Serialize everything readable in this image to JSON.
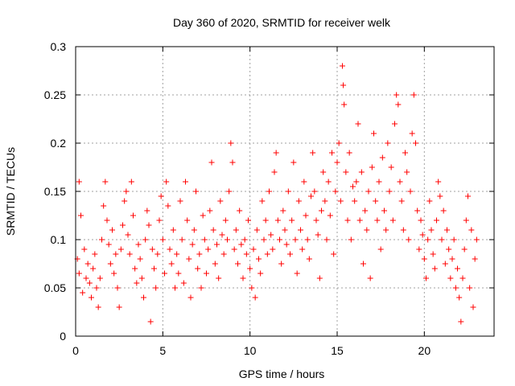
{
  "chart_data": {
    "type": "scatter",
    "title": "Day 360 of 2020, SRMTID for receiver welk",
    "xlabel": "GPS time / hours",
    "ylabel": "SRMTID / TECUs",
    "xlim": [
      0,
      24
    ],
    "ylim": [
      0,
      0.3
    ],
    "x_ticks": [
      0,
      5,
      10,
      15,
      20
    ],
    "x_tick_labels": [
      "0",
      "5",
      "10",
      "15",
      "20"
    ],
    "y_ticks": [
      0,
      0.05,
      0.1,
      0.15,
      0.2,
      0.25,
      0.3
    ],
    "y_tick_labels": [
      "0",
      "0.05",
      "0.1",
      "0.15",
      "0.2",
      "0.25",
      "0.3"
    ],
    "grid": true,
    "marker": "+",
    "color": "#ff0000",
    "series": [
      {
        "name": "SRMTID",
        "points": [
          [
            0.1,
            0.08
          ],
          [
            0.2,
            0.065
          ],
          [
            0.2,
            0.16
          ],
          [
            0.3,
            0.125
          ],
          [
            0.4,
            0.045
          ],
          [
            0.5,
            0.09
          ],
          [
            0.6,
            0.06
          ],
          [
            0.7,
            0.075
          ],
          [
            0.8,
            0.055
          ],
          [
            0.9,
            0.04
          ],
          [
            1.0,
            0.07
          ],
          [
            1.1,
            0.085
          ],
          [
            1.2,
            0.05
          ],
          [
            1.3,
            0.03
          ],
          [
            1.4,
            0.06
          ],
          [
            1.5,
            0.1
          ],
          [
            1.6,
            0.135
          ],
          [
            1.7,
            0.16
          ],
          [
            1.8,
            0.12
          ],
          [
            1.9,
            0.095
          ],
          [
            2.0,
            0.075
          ],
          [
            2.1,
            0.11
          ],
          [
            2.2,
            0.065
          ],
          [
            2.3,
            0.085
          ],
          [
            2.4,
            0.05
          ],
          [
            2.5,
            0.03
          ],
          [
            2.6,
            0.09
          ],
          [
            2.7,
            0.115
          ],
          [
            2.8,
            0.14
          ],
          [
            2.9,
            0.15
          ],
          [
            3.0,
            0.105
          ],
          [
            3.1,
            0.085
          ],
          [
            3.2,
            0.16
          ],
          [
            3.3,
            0.125
          ],
          [
            3.4,
            0.07
          ],
          [
            3.5,
            0.055
          ],
          [
            3.6,
            0.095
          ],
          [
            3.7,
            0.08
          ],
          [
            3.8,
            0.06
          ],
          [
            3.9,
            0.04
          ],
          [
            4.0,
            0.1
          ],
          [
            4.1,
            0.13
          ],
          [
            4.2,
            0.115
          ],
          [
            4.3,
            0.015
          ],
          [
            4.4,
            0.09
          ],
          [
            4.5,
            0.07
          ],
          [
            4.6,
            0.05
          ],
          [
            4.7,
            0.085
          ],
          [
            4.8,
            0.12
          ],
          [
            4.9,
            0.145
          ],
          [
            5.0,
            0.1
          ],
          [
            5.1,
            0.065
          ],
          [
            5.2,
            0.16
          ],
          [
            5.3,
            0.135
          ],
          [
            5.4,
            0.09
          ],
          [
            5.5,
            0.075
          ],
          [
            5.6,
            0.11
          ],
          [
            5.7,
            0.05
          ],
          [
            5.8,
            0.085
          ],
          [
            5.9,
            0.065
          ],
          [
            6.0,
            0.14
          ],
          [
            6.1,
            0.1
          ],
          [
            6.2,
            0.055
          ],
          [
            6.3,
            0.16
          ],
          [
            6.4,
            0.12
          ],
          [
            6.5,
            0.08
          ],
          [
            6.6,
            0.04
          ],
          [
            6.7,
            0.095
          ],
          [
            6.8,
            0.11
          ],
          [
            6.9,
            0.15
          ],
          [
            7.0,
            0.07
          ],
          [
            7.1,
            0.085
          ],
          [
            7.2,
            0.05
          ],
          [
            7.3,
            0.125
          ],
          [
            7.4,
            0.1
          ],
          [
            7.5,
            0.065
          ],
          [
            7.6,
            0.09
          ],
          [
            7.7,
            0.13
          ],
          [
            7.8,
            0.18
          ],
          [
            7.9,
            0.11
          ],
          [
            8.0,
            0.075
          ],
          [
            8.1,
            0.095
          ],
          [
            8.2,
            0.06
          ],
          [
            8.3,
            0.14
          ],
          [
            8.4,
            0.105
          ],
          [
            8.5,
            0.085
          ],
          [
            8.6,
            0.12
          ],
          [
            8.7,
            0.1
          ],
          [
            8.8,
            0.15
          ],
          [
            8.9,
            0.2
          ],
          [
            9.0,
            0.18
          ],
          [
            9.1,
            0.09
          ],
          [
            9.2,
            0.11
          ],
          [
            9.3,
            0.075
          ],
          [
            9.4,
            0.13
          ],
          [
            9.5,
            0.095
          ],
          [
            9.6,
            0.06
          ],
          [
            9.7,
            0.1
          ],
          [
            9.8,
            0.085
          ],
          [
            9.9,
            0.12
          ],
          [
            10.0,
            0.07
          ],
          [
            10.1,
            0.05
          ],
          [
            10.2,
            0.09
          ],
          [
            10.3,
            0.04
          ],
          [
            10.4,
            0.11
          ],
          [
            10.5,
            0.08
          ],
          [
            10.6,
            0.065
          ],
          [
            10.7,
            0.14
          ],
          [
            10.8,
            0.1
          ],
          [
            10.9,
            0.12
          ],
          [
            11.0,
            0.085
          ],
          [
            11.1,
            0.15
          ],
          [
            11.2,
            0.105
          ],
          [
            11.3,
            0.09
          ],
          [
            11.4,
            0.17
          ],
          [
            11.5,
            0.19
          ],
          [
            11.6,
            0.12
          ],
          [
            11.7,
            0.1
          ],
          [
            11.8,
            0.075
          ],
          [
            11.9,
            0.13
          ],
          [
            12.0,
            0.11
          ],
          [
            12.1,
            0.095
          ],
          [
            12.2,
            0.15
          ],
          [
            12.3,
            0.085
          ],
          [
            12.4,
            0.12
          ],
          [
            12.5,
            0.18
          ],
          [
            12.6,
            0.1
          ],
          [
            12.7,
            0.065
          ],
          [
            12.8,
            0.14
          ],
          [
            12.9,
            0.11
          ],
          [
            13.0,
            0.09
          ],
          [
            13.1,
            0.16
          ],
          [
            13.2,
            0.125
          ],
          [
            13.3,
            0.1
          ],
          [
            13.4,
            0.08
          ],
          [
            13.5,
            0.145
          ],
          [
            13.6,
            0.19
          ],
          [
            13.7,
            0.15
          ],
          [
            13.8,
            0.12
          ],
          [
            13.9,
            0.105
          ],
          [
            14.0,
            0.06
          ],
          [
            14.1,
            0.13
          ],
          [
            14.2,
            0.17
          ],
          [
            14.3,
            0.14
          ],
          [
            14.4,
            0.1
          ],
          [
            14.5,
            0.16
          ],
          [
            14.6,
            0.125
          ],
          [
            14.7,
            0.19
          ],
          [
            14.8,
            0.085
          ],
          [
            14.9,
            0.15
          ],
          [
            15.0,
            0.18
          ],
          [
            15.1,
            0.2
          ],
          [
            15.2,
            0.14
          ],
          [
            15.3,
            0.28
          ],
          [
            15.35,
            0.26
          ],
          [
            15.4,
            0.24
          ],
          [
            15.5,
            0.17
          ],
          [
            15.6,
            0.12
          ],
          [
            15.7,
            0.19
          ],
          [
            15.8,
            0.1
          ],
          [
            15.9,
            0.155
          ],
          [
            16.0,
            0.14
          ],
          [
            16.1,
            0.16
          ],
          [
            16.2,
            0.22
          ],
          [
            16.3,
            0.12
          ],
          [
            16.4,
            0.17
          ],
          [
            16.5,
            0.075
          ],
          [
            16.6,
            0.13
          ],
          [
            16.7,
            0.11
          ],
          [
            16.8,
            0.15
          ],
          [
            16.9,
            0.06
          ],
          [
            17.0,
            0.175
          ],
          [
            17.1,
            0.21
          ],
          [
            17.2,
            0.14
          ],
          [
            17.3,
            0.12
          ],
          [
            17.4,
            0.16
          ],
          [
            17.5,
            0.09
          ],
          [
            17.6,
            0.185
          ],
          [
            17.7,
            0.13
          ],
          [
            17.8,
            0.11
          ],
          [
            17.9,
            0.2
          ],
          [
            18.0,
            0.15
          ],
          [
            18.1,
            0.175
          ],
          [
            18.2,
            0.12
          ],
          [
            18.3,
            0.22
          ],
          [
            18.4,
            0.25
          ],
          [
            18.5,
            0.24
          ],
          [
            18.6,
            0.16
          ],
          [
            18.7,
            0.14
          ],
          [
            18.8,
            0.11
          ],
          [
            18.9,
            0.19
          ],
          [
            19.0,
            0.17
          ],
          [
            19.1,
            0.1
          ],
          [
            19.2,
            0.15
          ],
          [
            19.3,
            0.21
          ],
          [
            19.4,
            0.25
          ],
          [
            19.5,
            0.2
          ],
          [
            19.6,
            0.13
          ],
          [
            19.7,
            0.09
          ],
          [
            19.8,
            0.12
          ],
          [
            19.9,
            0.105
          ],
          [
            20.0,
            0.08
          ],
          [
            20.1,
            0.06
          ],
          [
            20.2,
            0.1
          ],
          [
            20.3,
            0.14
          ],
          [
            20.4,
            0.11
          ],
          [
            20.5,
            0.085
          ],
          [
            20.6,
            0.07
          ],
          [
            20.7,
            0.12
          ],
          [
            20.8,
            0.16
          ],
          [
            20.9,
            0.145
          ],
          [
            21.0,
            0.1
          ],
          [
            21.1,
            0.13
          ],
          [
            21.2,
            0.075
          ],
          [
            21.3,
            0.11
          ],
          [
            21.4,
            0.09
          ],
          [
            21.5,
            0.06
          ],
          [
            21.6,
            0.08
          ],
          [
            21.7,
            0.1
          ],
          [
            21.8,
            0.05
          ],
          [
            21.9,
            0.07
          ],
          [
            22.0,
            0.04
          ],
          [
            22.1,
            0.015
          ],
          [
            22.2,
            0.06
          ],
          [
            22.3,
            0.09
          ],
          [
            22.4,
            0.12
          ],
          [
            22.5,
            0.145
          ],
          [
            22.6,
            0.05
          ],
          [
            22.7,
            0.11
          ],
          [
            22.8,
            0.03
          ],
          [
            22.9,
            0.08
          ],
          [
            23.0,
            0.1
          ]
        ]
      }
    ]
  }
}
